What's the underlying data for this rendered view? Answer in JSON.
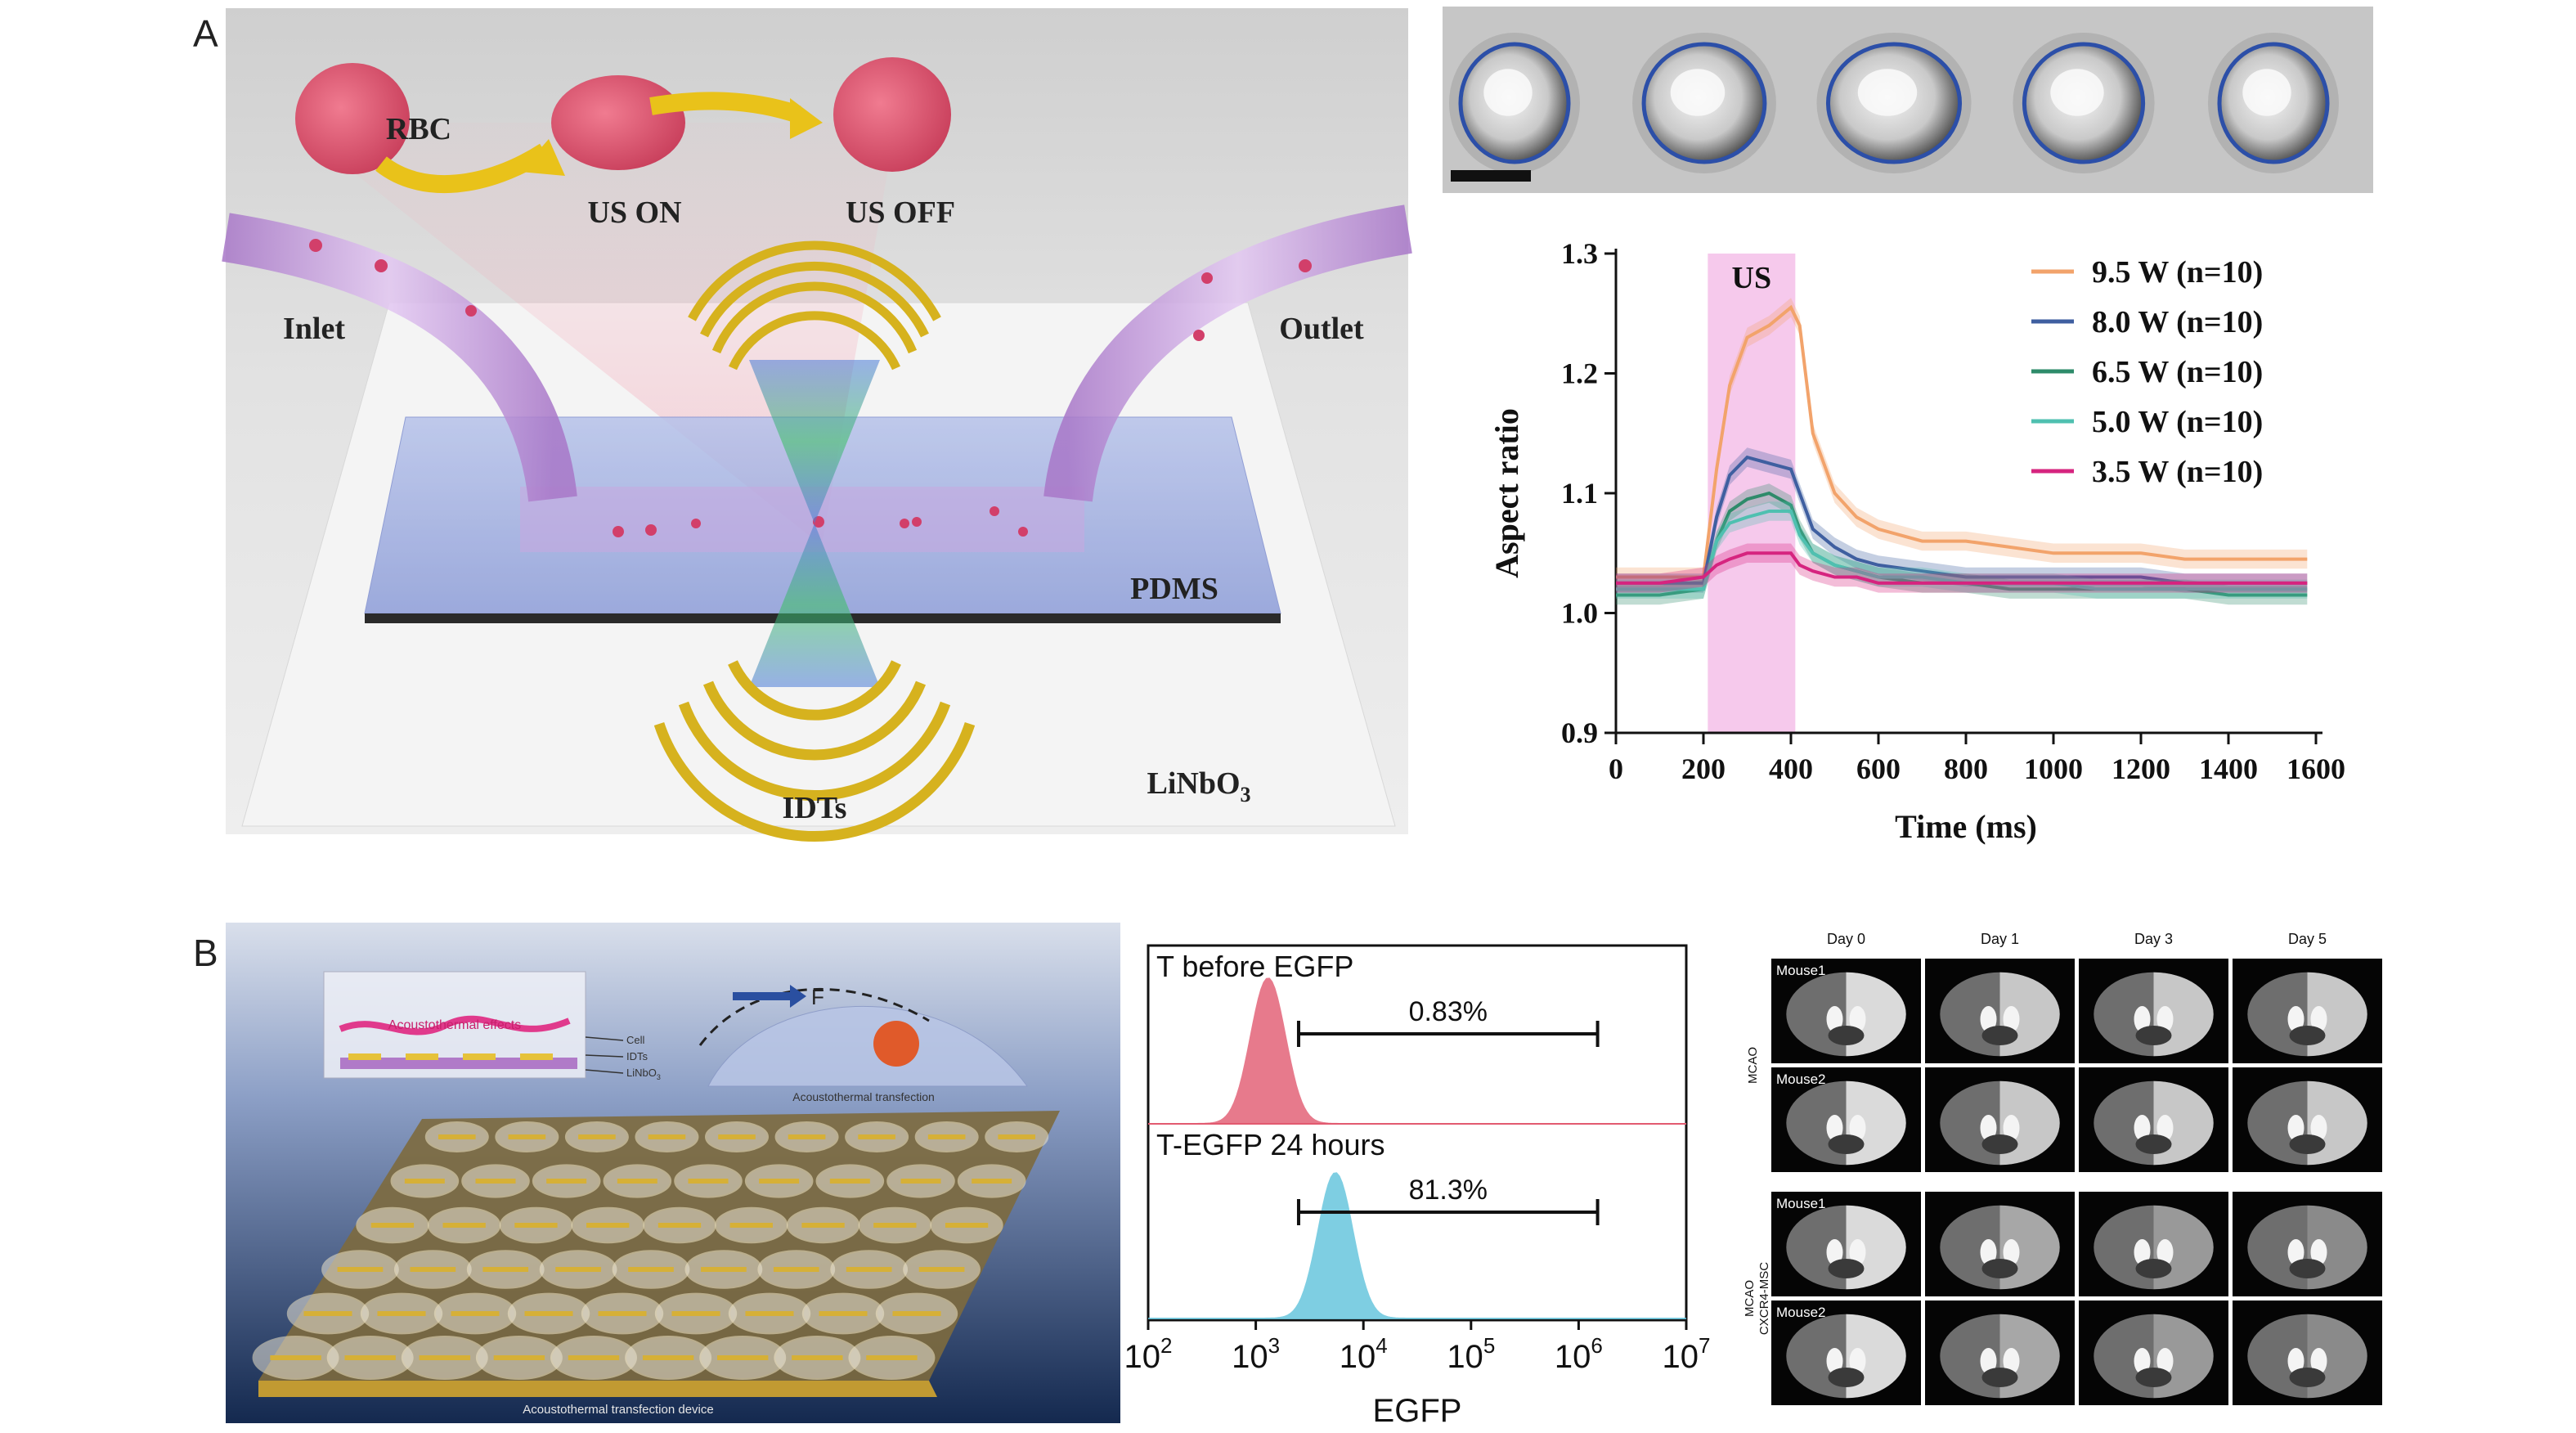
{
  "panels": {
    "a": {
      "letter": "A"
    },
    "b": {
      "letter": "B"
    }
  },
  "schematic_a": {
    "rbc_label": "RBC",
    "us_on": "US ON",
    "us_off": "US OFF",
    "inlet": "Inlet",
    "outlet": "Outlet",
    "pdms": "PDMS",
    "idts": "IDTs",
    "linbo3": "LiNbO",
    "linbo3_sub": "3"
  },
  "cell_strip": {
    "cell_count": 5,
    "outline_color": "#2c4fa8"
  },
  "chart_data": [
    {
      "type": "line",
      "ylabel": "Aspect ratio",
      "xlabel": "Time (ms)",
      "xlim": [
        0,
        1600
      ],
      "ylim": [
        0.9,
        1.3
      ],
      "x_ticks": [
        0,
        200,
        400,
        600,
        800,
        1000,
        1200,
        1400,
        1600
      ],
      "y_ticks": [
        "0.9",
        "1.0",
        "1.1",
        "1.2",
        "1.3"
      ],
      "us_band": {
        "label": "US",
        "start": 210,
        "end": 410,
        "color": "#f6c9ec"
      },
      "legend_position": "top-right",
      "x": [
        0,
        100,
        200,
        230,
        260,
        300,
        350,
        400,
        420,
        450,
        500,
        550,
        600,
        700,
        800,
        900,
        1000,
        1100,
        1200,
        1300,
        1400,
        1500,
        1580
      ],
      "series": [
        {
          "name": "9.5 W (n=10)",
          "color": "#f2a36b",
          "values": [
            1.03,
            1.03,
            1.03,
            1.12,
            1.19,
            1.23,
            1.24,
            1.255,
            1.24,
            1.15,
            1.1,
            1.08,
            1.07,
            1.06,
            1.06,
            1.055,
            1.05,
            1.05,
            1.05,
            1.045,
            1.045,
            1.045,
            1.045
          ]
        },
        {
          "name": "8.0 W (n=10)",
          "color": "#3f5fa0",
          "values": [
            1.025,
            1.025,
            1.025,
            1.08,
            1.115,
            1.13,
            1.125,
            1.12,
            1.1,
            1.07,
            1.055,
            1.045,
            1.04,
            1.035,
            1.03,
            1.03,
            1.03,
            1.03,
            1.03,
            1.025,
            1.025,
            1.025,
            1.025
          ]
        },
        {
          "name": "6.5 W (n=10)",
          "color": "#2e8b6a",
          "values": [
            1.015,
            1.015,
            1.02,
            1.06,
            1.085,
            1.095,
            1.1,
            1.09,
            1.07,
            1.05,
            1.04,
            1.035,
            1.03,
            1.025,
            1.025,
            1.02,
            1.02,
            1.02,
            1.02,
            1.02,
            1.015,
            1.015,
            1.015
          ]
        },
        {
          "name": "5.0 W (n=10)",
          "color": "#4fc0b0",
          "values": [
            1.02,
            1.02,
            1.02,
            1.06,
            1.075,
            1.08,
            1.085,
            1.085,
            1.065,
            1.05,
            1.04,
            1.035,
            1.03,
            1.03,
            1.025,
            1.025,
            1.025,
            1.02,
            1.02,
            1.02,
            1.02,
            1.02,
            1.02
          ]
        },
        {
          "name": "3.5 W (n=10)",
          "color": "#d6247f",
          "values": [
            1.025,
            1.025,
            1.03,
            1.04,
            1.045,
            1.05,
            1.05,
            1.05,
            1.04,
            1.035,
            1.03,
            1.03,
            1.025,
            1.025,
            1.025,
            1.025,
            1.025,
            1.025,
            1.025,
            1.025,
            1.025,
            1.025,
            1.025
          ]
        }
      ]
    },
    {
      "type": "area",
      "xlabel": "EGFP",
      "x_scale": "log",
      "xlim": [
        100,
        10000000
      ],
      "x_tick_labels": [
        {
          "base": "10",
          "exp": "2"
        },
        {
          "base": "10",
          "exp": "3"
        },
        {
          "base": "10",
          "exp": "4"
        },
        {
          "base": "10",
          "exp": "5"
        },
        {
          "base": "10",
          "exp": "6"
        },
        {
          "base": "10",
          "exp": "7"
        }
      ],
      "histograms": [
        {
          "label": "T before EGFP",
          "gate_percent": "0.83%",
          "gate": [
            2500,
            1500000
          ],
          "peak": 1300,
          "width": 0.16,
          "color": "#e25a70"
        },
        {
          "label": "T-EGFP 24 hours",
          "gate_percent": "81.3%",
          "gate": [
            2500,
            1500000
          ],
          "peak": 5500,
          "width": 0.16,
          "color": "#5ec3dc"
        }
      ]
    }
  ],
  "device_b": {
    "inset_labels": [
      "Acoustothermal effects",
      "Cell",
      "IDTs",
      "LiNbO"
    ],
    "inset_sub": "3",
    "force_label": "F",
    "transfection_caption": "Acoustothermal transfection",
    "device_caption": "Acoustothermal transfection device"
  },
  "mri_grid": {
    "days": [
      "Day 0",
      "Day 1",
      "Day 3",
      "Day 5"
    ],
    "groups": [
      {
        "label": "MCAO",
        "mice": [
          "Mouse1",
          "Mouse2"
        ]
      },
      {
        "label": "MCAO\nCXCR4-MSC",
        "label_line1": "MCAO",
        "label_line2": "CXCR4-MSC",
        "mice": [
          "Mouse1",
          "Mouse2"
        ]
      }
    ]
  }
}
